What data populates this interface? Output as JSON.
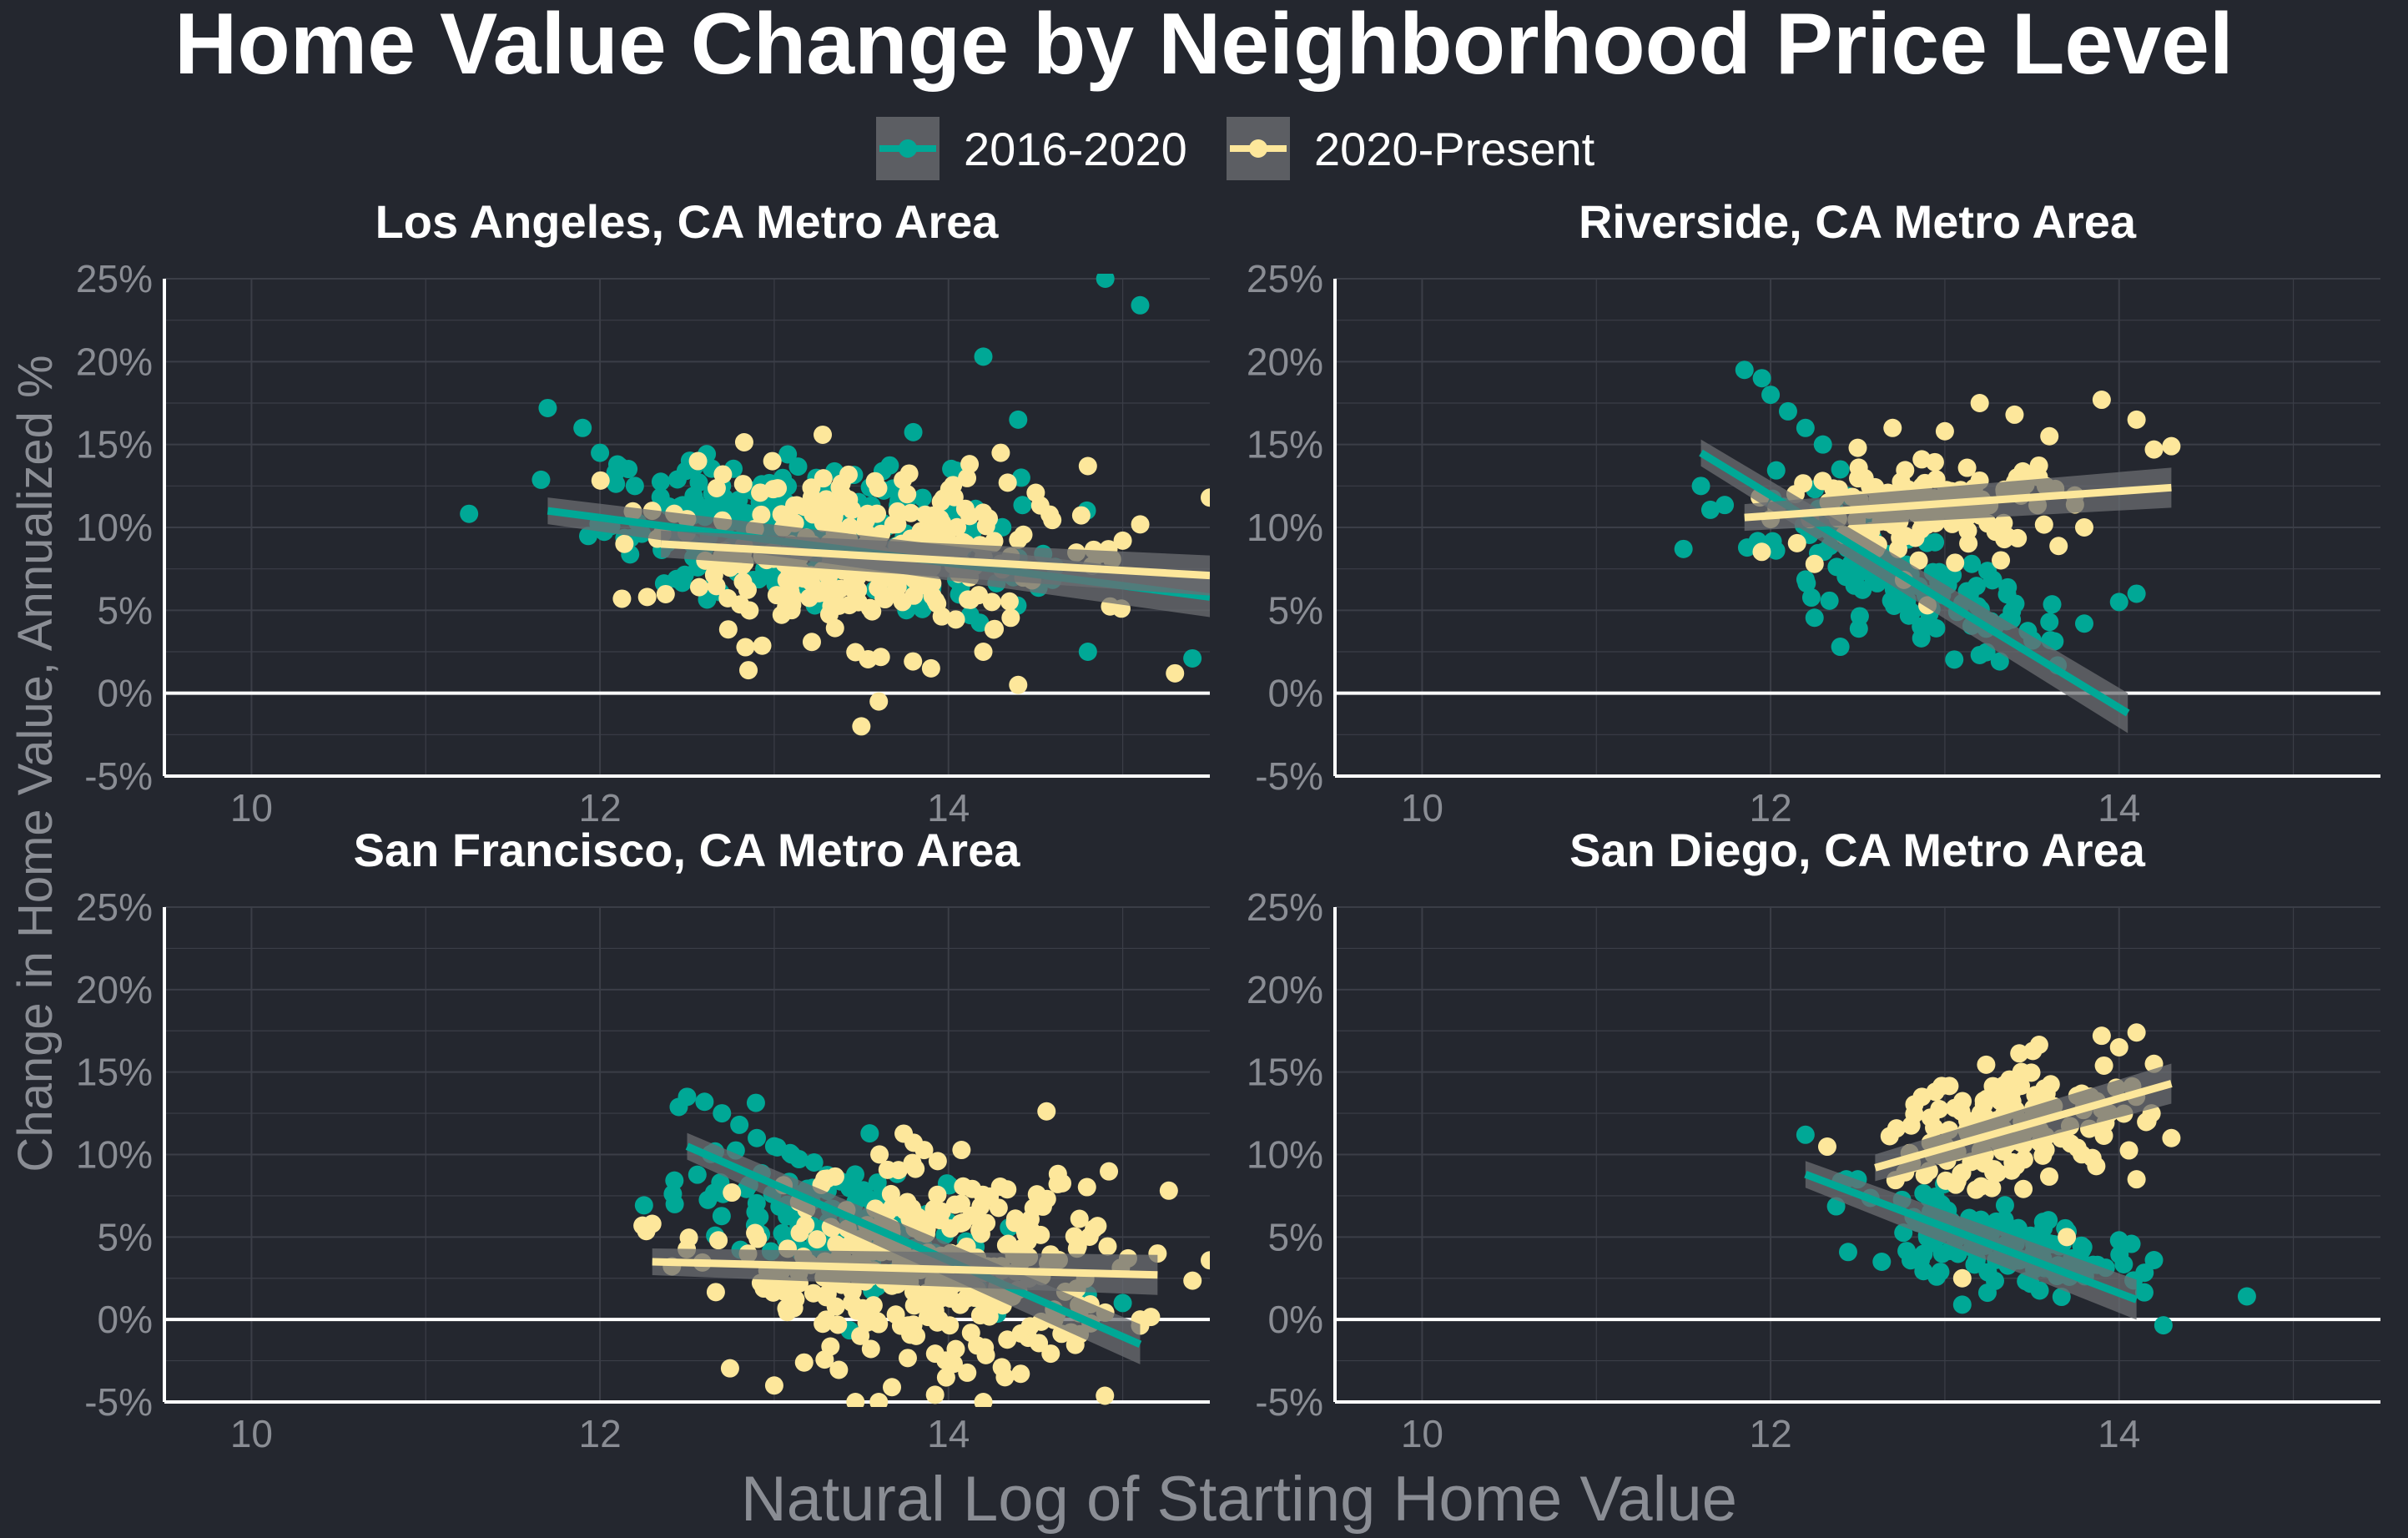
{
  "title": "Home Value Change by Neighborhood Price Level",
  "xlabel": "Natural Log of Starting Home Value",
  "ylabel": "Change in Home Value, Annualized %",
  "legend": [
    {
      "label": "2016-2020",
      "color": "#00a896",
      "icon": "line-point-key"
    },
    {
      "label": "2020-Present",
      "color": "#fde79b",
      "icon": "line-point-key"
    }
  ],
  "colors": {
    "background": "#24272f",
    "grid": "#3b3e47",
    "axis": "#ffffff",
    "tick_text": "#8a8d94",
    "ribbon": "#6b6d72"
  },
  "chart_data": [
    {
      "type": "scatter",
      "title": "Los Angeles, CA Metro Area",
      "xlim": [
        9.5,
        15.5
      ],
      "ylim": [
        -5,
        25
      ],
      "xticks": [
        10,
        12,
        14
      ],
      "yticks": [
        -5,
        0,
        5,
        10,
        15,
        20,
        25
      ],
      "ytick_labels": [
        "-5%",
        "0%",
        "5%",
        "10%",
        "15%",
        "20%",
        "25%"
      ],
      "hline": 0,
      "grid": true,
      "series": [
        {
          "name": "2016-2020",
          "fit": {
            "x": [
              11.7,
              15.5
            ],
            "y": [
              11.0,
              5.8
            ]
          },
          "cloud": {
            "center": [
              13.2,
              10.5
            ],
            "sd": [
              0.6,
              2.2
            ],
            "n": 260
          },
          "points": [
            [
              11.7,
              17.2
            ],
            [
              11.9,
              16
            ],
            [
              12.0,
              14.5
            ],
            [
              12.1,
              13.8
            ],
            [
              12.2,
              12.5
            ],
            [
              14.2,
              20.3
            ],
            [
              14.4,
              16.5
            ],
            [
              14.9,
              25.0
            ],
            [
              15.1,
              23.4
            ],
            [
              15.4,
              2.1
            ],
            [
              14.8,
              2.5
            ]
          ]
        },
        {
          "name": "2020-Present",
          "fit": {
            "x": [
              12.35,
              15.5
            ],
            "y": [
              9.0,
              7.1
            ]
          },
          "cloud": {
            "center": [
              13.5,
              8.5
            ],
            "sd": [
              0.55,
              2.4
            ],
            "n": 300
          },
          "points": [
            [
              12.3,
              11
            ],
            [
              12.5,
              10.5
            ],
            [
              14.3,
              14.5
            ],
            [
              14.8,
              13.7
            ],
            [
              15.5,
              11.8
            ],
            [
              15.0,
              9.2
            ],
            [
              14.4,
              0.5
            ],
            [
              15.3,
              1.2
            ],
            [
              13.5,
              -2
            ],
            [
              13.6,
              -0.5
            ],
            [
              14.2,
              2.5
            ],
            [
              13.9,
              1.5
            ]
          ]
        }
      ]
    },
    {
      "type": "scatter",
      "title": "Riverside, CA Metro Area",
      "xlim": [
        9.5,
        15.5
      ],
      "ylim": [
        -5,
        25
      ],
      "xticks": [
        10,
        12,
        14
      ],
      "yticks": [
        -5,
        0,
        5,
        10,
        15,
        20,
        25
      ],
      "ytick_labels": [
        "-5%",
        "0%",
        "5%",
        "10%",
        "15%",
        "20%",
        "25%"
      ],
      "hline": 0,
      "grid": true,
      "series": [
        {
          "name": "2016-2020",
          "fit": {
            "x": [
              11.6,
              14.05
            ],
            "y": [
              14.5,
              -1.2
            ]
          },
          "cloud": {
            "center": [
              12.7,
              6.0
            ],
            "sd": [
              0.45,
              1.5
            ],
            "n": 130
          },
          "points": [
            [
              11.85,
              19.5
            ],
            [
              11.95,
              19
            ],
            [
              12.0,
              18
            ],
            [
              12.1,
              17
            ],
            [
              12.2,
              16
            ],
            [
              12.3,
              15
            ],
            [
              12.4,
              13.5
            ],
            [
              11.5,
              8.7
            ],
            [
              11.6,
              12.5
            ],
            [
              13.6,
              4.3
            ],
            [
              13.8,
              4.2
            ],
            [
              14.0,
              5.5
            ],
            [
              14.1,
              6.0
            ],
            [
              13.2,
              2.3
            ],
            [
              12.4,
              2.8
            ]
          ]
        },
        {
          "name": "2020-Present",
          "fit": {
            "x": [
              11.85,
              14.3
            ],
            "y": [
              10.6,
              12.4
            ]
          },
          "cloud": {
            "center": [
              12.9,
              11.0
            ],
            "sd": [
              0.4,
              1.3
            ],
            "n": 150
          },
          "points": [
            [
              13.0,
              15.8
            ],
            [
              13.2,
              17.5
            ],
            [
              13.4,
              16.8
            ],
            [
              13.6,
              15.5
            ],
            [
              13.9,
              17.7
            ],
            [
              14.1,
              16.5
            ],
            [
              14.2,
              14.7
            ],
            [
              14.3,
              14.9
            ],
            [
              12.5,
              14.8
            ],
            [
              12.7,
              16.0
            ],
            [
              12.9,
              5.3
            ],
            [
              13.8,
              10.0
            ],
            [
              12.0,
              10.5
            ]
          ]
        }
      ]
    },
    {
      "type": "scatter",
      "title": "San Francisco, CA Metro Area",
      "xlim": [
        9.5,
        15.5
      ],
      "ylim": [
        -5,
        25
      ],
      "xticks": [
        10,
        12,
        14
      ],
      "yticks": [
        -5,
        0,
        5,
        10,
        15,
        20,
        25
      ],
      "ytick_labels": [
        "-5%",
        "0%",
        "5%",
        "10%",
        "15%",
        "20%",
        "25%"
      ],
      "hline": 0,
      "grid": true,
      "series": [
        {
          "name": "2016-2020",
          "fit": {
            "x": [
              12.5,
              15.1
            ],
            "y": [
              10.5,
              -1.5
            ]
          },
          "cloud": {
            "center": [
              13.4,
              6.0
            ],
            "sd": [
              0.45,
              2.0
            ],
            "n": 140
          },
          "points": [
            [
              12.5,
              13.5
            ],
            [
              12.6,
              13.2
            ],
            [
              12.7,
              12.5
            ],
            [
              12.8,
              11.8
            ],
            [
              12.9,
              11
            ],
            [
              13.0,
              10.5
            ],
            [
              13.1,
              10
            ],
            [
              14.8,
              1.5
            ],
            [
              15.0,
              1.0
            ]
          ]
        },
        {
          "name": "2020-Present",
          "fit": {
            "x": [
              12.3,
              15.2
            ],
            "y": [
              3.5,
              2.7
            ]
          },
          "cloud": {
            "center": [
              13.9,
              2.5
            ],
            "sd": [
              0.55,
              3.0
            ],
            "n": 340
          },
          "points": [
            [
              12.3,
              5.8
            ],
            [
              15.2,
              4.0
            ],
            [
              15.1,
              0.0
            ],
            [
              13.6,
              -5
            ],
            [
              14.2,
              -5
            ],
            [
              13.0,
              -4
            ]
          ]
        }
      ]
    },
    {
      "type": "scatter",
      "title": "San Diego, CA Metro Area",
      "xlim": [
        9.5,
        15.5
      ],
      "ylim": [
        -5,
        25
      ],
      "xticks": [
        10,
        12,
        14
      ],
      "yticks": [
        -5,
        0,
        5,
        10,
        15,
        20,
        25
      ],
      "ytick_labels": [
        "-5%",
        "0%",
        "5%",
        "10%",
        "15%",
        "20%",
        "25%"
      ],
      "hline": 0,
      "grid": true,
      "series": [
        {
          "name": "2016-2020",
          "fit": {
            "x": [
              12.2,
              14.1
            ],
            "y": [
              8.8,
              1.2
            ]
          },
          "cloud": {
            "center": [
              13.3,
              4.5
            ],
            "sd": [
              0.4,
              1.3
            ],
            "n": 150
          },
          "points": [
            [
              12.2,
              11.2
            ],
            [
              12.5,
              8.5
            ],
            [
              13.1,
              0.9
            ],
            [
              14.0,
              4.8
            ],
            [
              14.2,
              3.6
            ]
          ]
        },
        {
          "name": "2020-Present",
          "fit": {
            "x": [
              12.6,
              14.3
            ],
            "y": [
              9.2,
              14.3
            ]
          },
          "cloud": {
            "center": [
              13.4,
              12.0
            ],
            "sd": [
              0.35,
              1.8
            ],
            "n": 150
          },
          "points": [
            [
              13.9,
              17.2
            ],
            [
              14.0,
              16.5
            ],
            [
              14.1,
              17.4
            ],
            [
              14.2,
              15.5
            ],
            [
              14.3,
              11.0
            ],
            [
              14.1,
              8.5
            ],
            [
              13.1,
              2.5
            ],
            [
              13.7,
              5.0
            ]
          ]
        }
      ]
    }
  ]
}
